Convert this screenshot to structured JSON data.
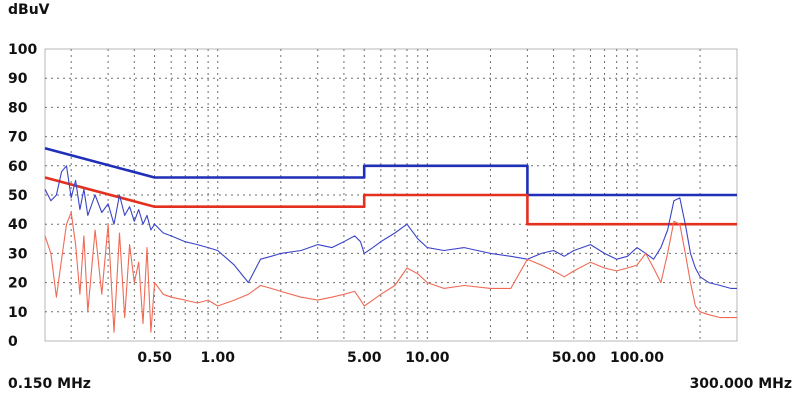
{
  "chart_data": {
    "type": "line",
    "unit_label": "dBuV",
    "x_start_label": "0.150 MHz",
    "x_end_label": "300.000 MHz",
    "x_scale": "log",
    "xlim": [
      0.15,
      300
    ],
    "ylim": [
      0,
      100
    ],
    "y_ticks": [
      0,
      10,
      20,
      30,
      40,
      50,
      60,
      70,
      80,
      90,
      100
    ],
    "x_tick_labels": [
      {
        "x": 0.5,
        "label": "0.50"
      },
      {
        "x": 1,
        "label": "1.00"
      },
      {
        "x": 5,
        "label": "5.00"
      },
      {
        "x": 10,
        "label": "10.00"
      },
      {
        "x": 50,
        "label": "50.00"
      },
      {
        "x": 100,
        "label": "100.00"
      }
    ],
    "grid": true,
    "colors": {
      "blue_limit": "#1f2fb8",
      "red_limit": "#e3301f",
      "blue_trace": "#3a44c8",
      "red_trace": "#ef6a55",
      "grid": "#6f6f6f"
    },
    "series": [
      {
        "color": "#1f2fb8",
        "kind": "limit",
        "x": [
          0.15,
          0.5,
          5,
          5,
          30,
          30,
          300
        ],
        "y": [
          66,
          56,
          56,
          60,
          60,
          50,
          50
        ]
      },
      {
        "color": "#e3301f",
        "kind": "limit",
        "x": [
          0.15,
          0.5,
          5,
          5,
          30,
          30,
          300
        ],
        "y": [
          56,
          46,
          46,
          50,
          50,
          40,
          40
        ]
      },
      {
        "color": "#3a44c8",
        "kind": "trace",
        "x": [
          0.15,
          0.16,
          0.17,
          0.18,
          0.19,
          0.2,
          0.21,
          0.22,
          0.23,
          0.24,
          0.26,
          0.28,
          0.3,
          0.32,
          0.34,
          0.36,
          0.38,
          0.4,
          0.42,
          0.44,
          0.46,
          0.48,
          0.5,
          0.55,
          0.6,
          0.7,
          0.8,
          0.9,
          1.0,
          1.2,
          1.4,
          1.6,
          1.8,
          2.0,
          2.5,
          3.0,
          3.5,
          4.0,
          4.5,
          4.8,
          5.0,
          5.5,
          6.0,
          7.0,
          8.0,
          9.0,
          10,
          12,
          15,
          20,
          25,
          30,
          35,
          40,
          45,
          50,
          60,
          70,
          80,
          90,
          100,
          110,
          120,
          130,
          140,
          150,
          160,
          170,
          180,
          190,
          200,
          220,
          250,
          280,
          300
        ],
        "y": [
          52,
          48,
          50,
          58,
          60,
          49,
          55,
          45,
          52,
          43,
          50,
          44,
          47,
          40,
          50,
          43,
          46,
          41,
          45,
          40,
          43,
          38,
          40,
          37,
          36,
          34,
          33,
          32,
          31,
          26,
          20,
          28,
          29,
          30,
          31,
          33,
          32,
          34,
          36,
          34,
          30,
          32,
          34,
          37,
          40,
          35,
          32,
          31,
          32,
          30,
          29,
          28,
          30,
          31,
          29,
          31,
          33,
          30,
          28,
          29,
          32,
          30,
          28,
          32,
          38,
          48,
          49,
          40,
          30,
          25,
          22,
          20,
          19,
          18,
          18
        ]
      },
      {
        "color": "#ef6a55",
        "kind": "trace",
        "x": [
          0.15,
          0.16,
          0.17,
          0.18,
          0.19,
          0.2,
          0.21,
          0.22,
          0.23,
          0.24,
          0.26,
          0.28,
          0.3,
          0.32,
          0.34,
          0.36,
          0.38,
          0.4,
          0.42,
          0.44,
          0.46,
          0.48,
          0.5,
          0.55,
          0.6,
          0.7,
          0.8,
          0.9,
          1.0,
          1.2,
          1.4,
          1.6,
          1.8,
          2.0,
          2.5,
          3.0,
          3.5,
          4.0,
          4.5,
          4.8,
          5.0,
          5.5,
          6.0,
          7.0,
          8.0,
          9.0,
          10,
          12,
          15,
          20,
          25,
          30,
          35,
          40,
          45,
          50,
          60,
          70,
          80,
          90,
          100,
          110,
          120,
          130,
          140,
          150,
          160,
          170,
          180,
          190,
          200,
          220,
          250,
          280,
          300
        ],
        "y": [
          36,
          30,
          15,
          28,
          40,
          44,
          33,
          16,
          36,
          10,
          38,
          16,
          40,
          3,
          37,
          8,
          33,
          20,
          27,
          6,
          32,
          3,
          20,
          16,
          15,
          14,
          13,
          14,
          12,
          14,
          16,
          19,
          18,
          17,
          15,
          14,
          15,
          16,
          17,
          14,
          12,
          14,
          16,
          19,
          25,
          23,
          20,
          18,
          19,
          18,
          18,
          28,
          26,
          24,
          22,
          24,
          27,
          25,
          24,
          25,
          26,
          30,
          25,
          20,
          30,
          41,
          40,
          30,
          20,
          12,
          10,
          9,
          8,
          8,
          8
        ]
      }
    ]
  }
}
